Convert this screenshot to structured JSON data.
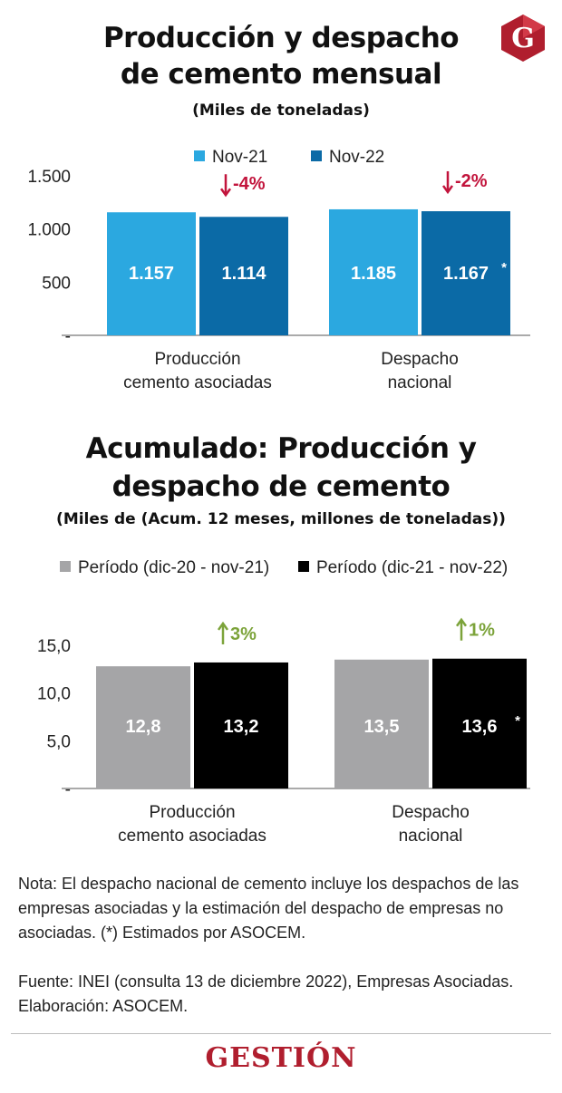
{
  "colors": {
    "nov21": "#2ba8e0",
    "nov22": "#0b6aa6",
    "period1": "#a5a5a7",
    "period2": "#000000",
    "down": "#c2143c",
    "up": "#7ca33a",
    "brand": "#b01e2e"
  },
  "header": {
    "title_line1": "Producción y despacho",
    "title_line2": "de cemento mensual",
    "unit": "(Miles de toneladas)",
    "logo_icon": "gestion-g-logo"
  },
  "chart_data": [
    {
      "type": "bar",
      "title": "Producción y despacho de cemento mensual",
      "subtitle": "(Miles de toneladas)",
      "categories": [
        "Producción cemento asociadas",
        "Despacho nacional"
      ],
      "category_lines": [
        [
          "Producción",
          "cemento asociadas"
        ],
        [
          "Despacho",
          "nacional"
        ]
      ],
      "series": [
        {
          "name": "Nov-21",
          "values": [
            1157,
            1185
          ],
          "labels": [
            "1.157",
            "1.185"
          ],
          "color": "#2ba8e0"
        },
        {
          "name": "Nov-22",
          "values": [
            1114,
            1167
          ],
          "labels": [
            "1.114",
            "1.167"
          ],
          "color": "#0b6aa6"
        }
      ],
      "asterisk_on": [
        false,
        true
      ],
      "changes": [
        {
          "label": "-4%",
          "direction": "down"
        },
        {
          "label": "-2%",
          "direction": "down"
        }
      ],
      "ylim": [
        0,
        1500
      ],
      "yticks": [
        {
          "value": 0,
          "label": "-"
        },
        {
          "value": 500,
          "label": "500"
        },
        {
          "value": 1000,
          "label": "1.000"
        },
        {
          "value": 1500,
          "label": "1.500"
        }
      ],
      "grid": false,
      "legend_position": "top"
    },
    {
      "type": "bar",
      "title": "Acumulado: Producción y despacho de cemento",
      "subtitle": "(Miles de (Acum. 12 meses, millones de toneladas))",
      "categories": [
        "Producción cemento asociadas",
        "Despacho nacional"
      ],
      "category_lines": [
        [
          "Producción",
          "cemento asociadas"
        ],
        [
          "Despacho",
          "nacional"
        ]
      ],
      "series": [
        {
          "name": "Período (dic-20 - nov-21)",
          "values": [
            12.8,
            13.5
          ],
          "labels": [
            "12,8",
            "13,5"
          ],
          "color": "#a5a5a7"
        },
        {
          "name": "Período (dic-21 - nov-22)",
          "values": [
            13.2,
            13.6
          ],
          "labels": [
            "13,2",
            "13,6"
          ],
          "color": "#000000"
        }
      ],
      "asterisk_on": [
        false,
        true
      ],
      "changes": [
        {
          "label": "3%",
          "direction": "up"
        },
        {
          "label": "1%",
          "direction": "up"
        }
      ],
      "ylim": [
        0,
        15
      ],
      "yticks": [
        {
          "value": 0,
          "label": "-"
        },
        {
          "value": 5,
          "label": "5,0"
        },
        {
          "value": 10,
          "label": "10,0"
        },
        {
          "value": 15,
          "label": "15,0"
        }
      ],
      "grid": false,
      "legend_position": "top"
    }
  ],
  "section2": {
    "title_line1": "Acumulado: Producción y",
    "title_line2": "despacho de cemento",
    "unit": "(Miles de (Acum. 12 meses, millones de toneladas))"
  },
  "footer": {
    "note": "Nota: El despacho nacional de cemento incluye los despachos de las empresas asociadas y la estimación del despacho de empresas no asociadas. (*) Estimados por ASOCEM.",
    "source_line1": "Fuente: INEI (consulta 13 de diciembre 2022), Empresas Asociadas.",
    "source_line2": "Elaboración: ASOCEM.",
    "brand": "GESTIÓN",
    "asterisk": "*"
  }
}
